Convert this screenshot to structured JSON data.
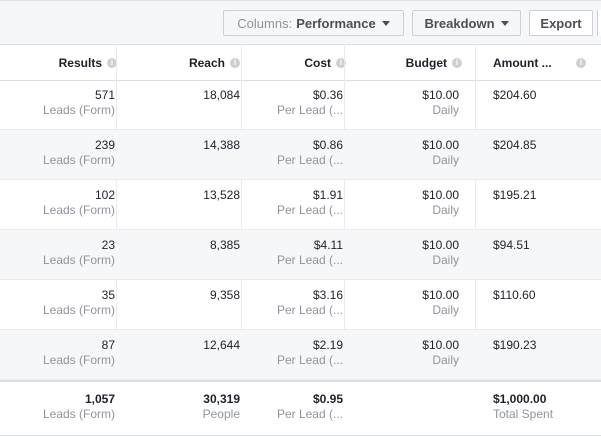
{
  "toolbar": {
    "columns_prefix": "Columns:",
    "columns_value": "Performance",
    "breakdown_label": "Breakdown",
    "export_label": "Export"
  },
  "table": {
    "headers": {
      "results": "Results",
      "reach": "Reach",
      "cost": "Cost",
      "budget": "Budget",
      "amount": "Amount ..."
    },
    "rows": [
      {
        "results": "571",
        "results_sub": "Leads (Form)",
        "reach": "18,084",
        "cost": "$0.36",
        "cost_sub": "Per Lead (...",
        "budget": "$10.00",
        "budget_sub": "Daily",
        "amount": "$204.60"
      },
      {
        "results": "239",
        "results_sub": "Leads (Form)",
        "reach": "14,388",
        "cost": "$0.86",
        "cost_sub": "Per Lead (...",
        "budget": "$10.00",
        "budget_sub": "Daily",
        "amount": "$204.85"
      },
      {
        "results": "102",
        "results_sub": "Leads (Form)",
        "reach": "13,528",
        "cost": "$1.91",
        "cost_sub": "Per Lead (...",
        "budget": "$10.00",
        "budget_sub": "Daily",
        "amount": "$195.21"
      },
      {
        "results": "23",
        "results_sub": "Leads (Form)",
        "reach": "8,385",
        "cost": "$4.11",
        "cost_sub": "Per Lead (...",
        "budget": "$10.00",
        "budget_sub": "Daily",
        "amount": "$94.51"
      },
      {
        "results": "35",
        "results_sub": "Leads (Form)",
        "reach": "9,358",
        "cost": "$3.16",
        "cost_sub": "Per Lead (...",
        "budget": "$10.00",
        "budget_sub": "Daily",
        "amount": "$110.60"
      },
      {
        "results": "87",
        "results_sub": "Leads (Form)",
        "reach": "12,644",
        "cost": "$2.19",
        "cost_sub": "Per Lead (...",
        "budget": "$10.00",
        "budget_sub": "Daily",
        "amount": "$190.23"
      }
    ],
    "total": {
      "results": "1,057",
      "results_sub": "Leads (Form)",
      "reach": "30,319",
      "reach_sub": "People",
      "cost": "$0.95",
      "cost_sub": "Per Lead (...",
      "amount": "$1,000.00",
      "amount_sub": "Total Spent"
    }
  }
}
